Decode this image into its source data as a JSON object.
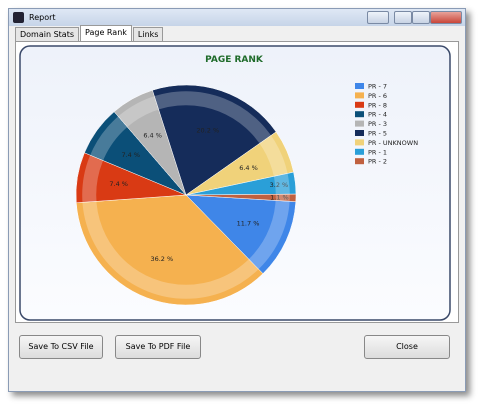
{
  "window": {
    "title": "Report"
  },
  "tabs": [
    "Domain Stats",
    "Page Rank",
    "Links"
  ],
  "chart_data": {
    "type": "pie",
    "title": "PAGE RANK",
    "start_angle": 3.5,
    "categories": [
      "PR - 7",
      "PR - 6",
      "PR - 8",
      "PR - 4",
      "PR - 3",
      "PR - 5",
      "PR - UNKNOWN",
      "PR - 1",
      "PR - 2"
    ],
    "values": [
      11.7,
      36.2,
      7.4,
      7.4,
      6.4,
      20.2,
      6.4,
      3.2,
      1.1
    ],
    "value_labels": [
      "11.7 %",
      "36.2 %",
      "7.4 %",
      "7.4 %",
      "6.4 %",
      "20.2 %",
      "6.4 %",
      "3.2 %",
      "1.1 %"
    ],
    "colors": [
      "#3f86e8",
      "#f5b14f",
      "#d93a14",
      "#0b4f78",
      "#b5b5b5",
      "#152c5a",
      "#f0d27a",
      "#2a9fd8",
      "#c0603f"
    ]
  },
  "buttons": [
    "Save To CSV File",
    "Save To PDF File",
    "Close"
  ]
}
